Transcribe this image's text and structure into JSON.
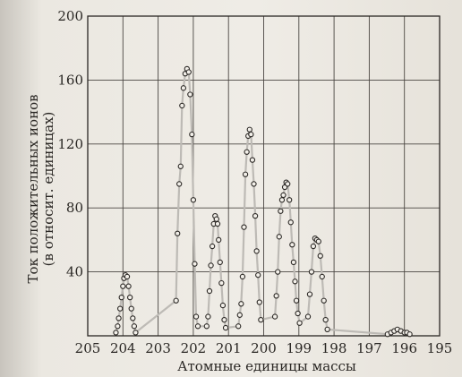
{
  "chart_data": {
    "type": "scatter",
    "xlabel": "Атомные единицы массы",
    "ylabel_line1": "Ток положительных ионов",
    "ylabel_line2": "(в относит. единицах)",
    "x_axis_reversed": true,
    "xlim": [
      205,
      195
    ],
    "ylim": [
      0,
      200
    ],
    "x_ticks": [
      205,
      204,
      203,
      202,
      201,
      200,
      199,
      198,
      197,
      196,
      195
    ],
    "y_ticks": [
      40,
      80,
      120,
      160,
      200
    ],
    "grid": true,
    "series": [
      {
        "points": [
          [
            204.2,
            2
          ],
          [
            204.15,
            6
          ],
          [
            204.12,
            11
          ],
          [
            204.08,
            17
          ],
          [
            204.04,
            24
          ],
          [
            204.0,
            31
          ],
          [
            203.97,
            36
          ],
          [
            203.93,
            38
          ],
          [
            203.88,
            37
          ],
          [
            203.84,
            31
          ],
          [
            203.8,
            24
          ],
          [
            203.76,
            17
          ],
          [
            203.72,
            11
          ],
          [
            203.68,
            6
          ],
          [
            203.64,
            2
          ],
          [
            202.49,
            22
          ],
          [
            202.45,
            64
          ],
          [
            202.4,
            95
          ],
          [
            202.36,
            106
          ],
          [
            202.32,
            144
          ],
          [
            202.28,
            155
          ],
          [
            202.23,
            164
          ],
          [
            202.18,
            167
          ],
          [
            202.13,
            165
          ],
          [
            202.09,
            151
          ],
          [
            202.04,
            126
          ],
          [
            202.0,
            85
          ],
          [
            201.96,
            45
          ],
          [
            201.92,
            12
          ],
          [
            201.87,
            6
          ],
          [
            201.62,
            6
          ],
          [
            201.58,
            12
          ],
          [
            201.54,
            28
          ],
          [
            201.5,
            44
          ],
          [
            201.46,
            56
          ],
          [
            201.42,
            70
          ],
          [
            201.38,
            75
          ],
          [
            201.34,
            73
          ],
          [
            201.31,
            70
          ],
          [
            201.28,
            60
          ],
          [
            201.24,
            46
          ],
          [
            201.2,
            33
          ],
          [
            201.16,
            19
          ],
          [
            201.12,
            10
          ],
          [
            201.08,
            5
          ],
          [
            200.72,
            6
          ],
          [
            200.68,
            13
          ],
          [
            200.64,
            20
          ],
          [
            200.6,
            37
          ],
          [
            200.56,
            68
          ],
          [
            200.52,
            101
          ],
          [
            200.48,
            115
          ],
          [
            200.44,
            125
          ],
          [
            200.4,
            129
          ],
          [
            200.36,
            126
          ],
          [
            200.32,
            110
          ],
          [
            200.28,
            95
          ],
          [
            200.24,
            75
          ],
          [
            200.2,
            53
          ],
          [
            200.16,
            38
          ],
          [
            200.12,
            21
          ],
          [
            200.08,
            10
          ],
          [
            199.68,
            12
          ],
          [
            199.64,
            25
          ],
          [
            199.6,
            40
          ],
          [
            199.56,
            62
          ],
          [
            199.52,
            78
          ],
          [
            199.48,
            85
          ],
          [
            199.44,
            88
          ],
          [
            199.4,
            93
          ],
          [
            199.36,
            96
          ],
          [
            199.32,
            95
          ],
          [
            199.27,
            85
          ],
          [
            199.23,
            71
          ],
          [
            199.19,
            57
          ],
          [
            199.15,
            46
          ],
          [
            199.11,
            34
          ],
          [
            199.07,
            22
          ],
          [
            199.03,
            14
          ],
          [
            198.98,
            8
          ],
          [
            198.74,
            12
          ],
          [
            198.69,
            26
          ],
          [
            198.64,
            40
          ],
          [
            198.59,
            56
          ],
          [
            198.54,
            61
          ],
          [
            198.49,
            60
          ],
          [
            198.44,
            59
          ],
          [
            198.39,
            50
          ],
          [
            198.34,
            37
          ],
          [
            198.29,
            22
          ],
          [
            198.24,
            10
          ],
          [
            198.19,
            4
          ],
          [
            196.48,
            1
          ],
          [
            196.38,
            2
          ],
          [
            196.29,
            3
          ],
          [
            196.2,
            4
          ],
          [
            196.1,
            3
          ],
          [
            196.0,
            2
          ],
          [
            195.93,
            2
          ],
          [
            195.85,
            1
          ]
        ]
      }
    ]
  }
}
